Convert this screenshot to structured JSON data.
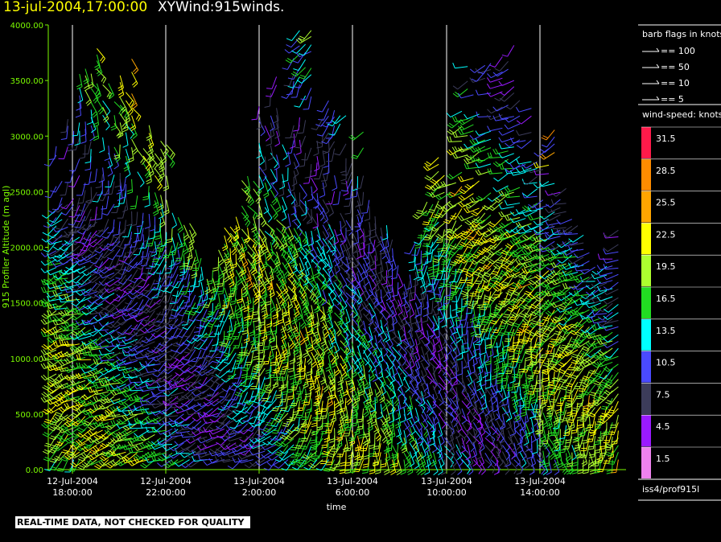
{
  "header": {
    "date_label": "13-jul-2004,17:00:00",
    "title": "XYWind:915winds."
  },
  "footer": {
    "quality_note": "REAL-TIME DATA, NOT CHECKED FOR QUALITY",
    "source": "iss4/prof915l"
  },
  "legend": {
    "barb_title": "barb flags in knots",
    "barb_items": [
      "== 100",
      "== 50",
      "== 10",
      "== 5"
    ],
    "speed_title": "wind-speed: knots",
    "speed_bins": [
      {
        "label": "31.5",
        "color": "#ff1a4a"
      },
      {
        "label": "28.5",
        "color": "#ff8c00"
      },
      {
        "label": "25.5",
        "color": "#ffa500"
      },
      {
        "label": "22.5",
        "color": "#ffff00"
      },
      {
        "label": "19.5",
        "color": "#adff2f"
      },
      {
        "label": "16.5",
        "color": "#22dd22"
      },
      {
        "label": "13.5",
        "color": "#00ffff"
      },
      {
        "label": "10.5",
        "color": "#4a4aff"
      },
      {
        "label": "7.5",
        "color": "#3c3c5a"
      },
      {
        "label": "4.5",
        "color": "#9a1aff"
      },
      {
        "label": "1.5",
        "color": "#ee82ee"
      }
    ]
  },
  "chart_data": {
    "type": "wind-barb time-height",
    "ylabel": "915 Profiler Altitude (m agl)",
    "xlabel": "time",
    "ylim": [
      0,
      4000
    ],
    "yticks": [
      "0.00",
      "500.00",
      "1000.00",
      "1500.00",
      "2000.00",
      "2500.00",
      "3000.00",
      "3500.00",
      "4000.00"
    ],
    "xtick_labels": [
      [
        "12-Jul-2004",
        "18:00:00"
      ],
      [
        "12-Jul-2004",
        "22:00:00"
      ],
      [
        "13-Jul-2004",
        "2:00:00"
      ],
      [
        "13-Jul-2004",
        "6:00:00"
      ],
      [
        "13-Jul-2004",
        "10:00:00"
      ],
      [
        "13-Jul-2004",
        "14:00:00"
      ]
    ],
    "vertical_gridlines": true,
    "axis_color": "#7cfc00"
  }
}
